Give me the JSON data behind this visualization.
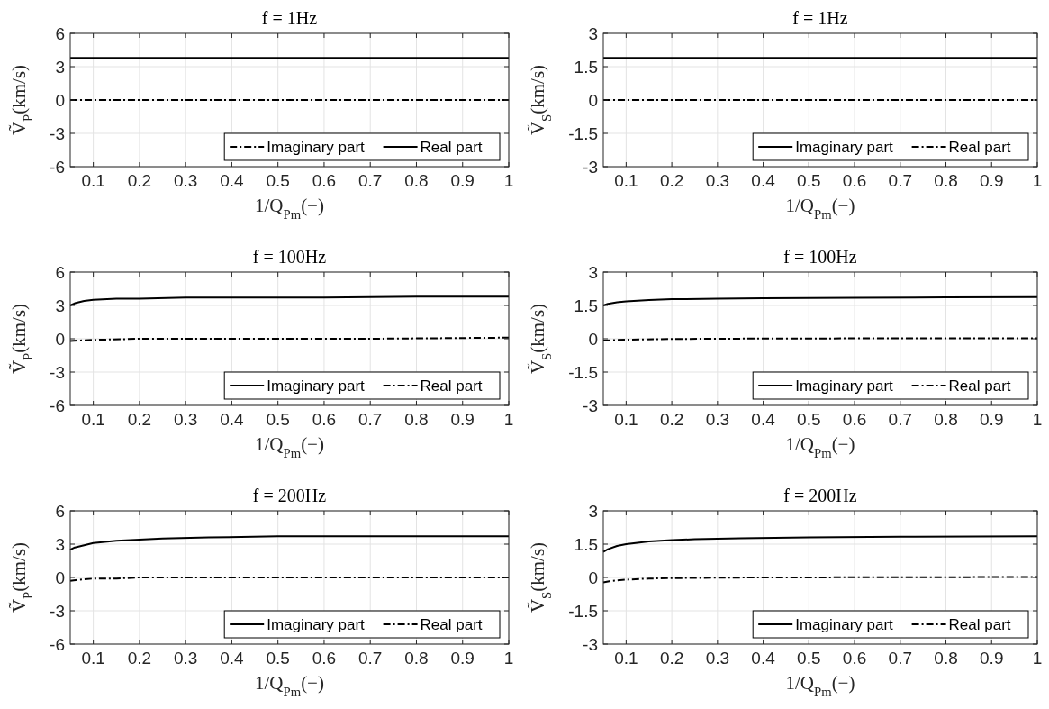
{
  "chart_data": [
    {
      "type": "line",
      "title": "f = 1Hz",
      "xlabel": "1/Q$_{Pm}$(−)",
      "ylabel": "Ṽ$_{P}$(km/s)",
      "xlim": [
        0.05,
        1
      ],
      "xticks": [
        0.1,
        0.2,
        0.3,
        0.4,
        0.5,
        0.6,
        0.7,
        0.8,
        0.9,
        1
      ],
      "ylim": [
        -6,
        6
      ],
      "yticks": [
        -6,
        -3,
        0,
        3,
        6
      ],
      "grid": true,
      "legend": "bottom right",
      "series": [
        {
          "name": "Imaginary part",
          "color": "#000000",
          "line_style": "dashdot",
          "x": [
            0.05,
            1
          ],
          "values": [
            0,
            0
          ]
        },
        {
          "name": "Real part",
          "color": "#000000",
          "line_style": "solid",
          "x": [
            0.05,
            1
          ],
          "values": [
            3.8,
            3.8
          ]
        }
      ]
    },
    {
      "type": "line",
      "title": "f = 1Hz",
      "xlabel": "1/Q$_{Pm}$(−)",
      "ylabel": "Ṽ$_{S}$(km/s)",
      "xlim": [
        0.05,
        1
      ],
      "xticks": [
        0.1,
        0.2,
        0.3,
        0.4,
        0.5,
        0.6,
        0.7,
        0.8,
        0.9,
        1
      ],
      "ylim": [
        -3,
        3
      ],
      "yticks": [
        -3,
        -1.5,
        0,
        1.5,
        3
      ],
      "grid": true,
      "legend": "bottom right",
      "series": [
        {
          "name": "Imaginary part",
          "color": "#000000",
          "line_style": "solid",
          "x": [
            0.05,
            1
          ],
          "values": [
            1.9,
            1.9
          ]
        },
        {
          "name": "Real part",
          "color": "#000000",
          "line_style": "dashdot",
          "x": [
            0.05,
            1
          ],
          "values": [
            0,
            0
          ]
        }
      ]
    },
    {
      "type": "line",
      "title": "f = 100Hz",
      "xlabel": "1/Q$_{Pm}$(−)",
      "ylabel": "Ṽ$_{P}$(km/s)",
      "xlim": [
        0.05,
        1
      ],
      "xticks": [
        0.1,
        0.2,
        0.3,
        0.4,
        0.5,
        0.6,
        0.7,
        0.8,
        0.9,
        1
      ],
      "ylim": [
        -6,
        6
      ],
      "yticks": [
        -6,
        -3,
        0,
        3,
        6
      ],
      "grid": true,
      "legend": "bottom right",
      "series": [
        {
          "name": "Imaginary part",
          "color": "#000000",
          "line_style": "solid",
          "x": [
            0.05,
            0.06,
            0.08,
            0.1,
            0.15,
            0.2,
            0.3,
            0.4,
            0.6,
            0.8,
            1
          ],
          "values": [
            3.0,
            3.2,
            3.4,
            3.5,
            3.6,
            3.6,
            3.7,
            3.7,
            3.7,
            3.8,
            3.8
          ]
        },
        {
          "name": "Real part",
          "color": "#000000",
          "line_style": "dashdot",
          "x": [
            0.05,
            0.1,
            0.2,
            0.4,
            0.7,
            1
          ],
          "values": [
            -0.2,
            -0.1,
            0,
            0,
            0,
            0.1
          ]
        }
      ]
    },
    {
      "type": "line",
      "title": "f = 100Hz",
      "xlabel": "1/Q$_{Pm}$(−)",
      "ylabel": "Ṽ$_{S}$(km/s)",
      "xlim": [
        0.05,
        1
      ],
      "xticks": [
        0.1,
        0.2,
        0.3,
        0.4,
        0.5,
        0.6,
        0.7,
        0.8,
        0.9,
        1
      ],
      "ylim": [
        -3,
        3
      ],
      "yticks": [
        -3,
        -1.5,
        0,
        1.5,
        3
      ],
      "grid": true,
      "legend": "bottom right",
      "series": [
        {
          "name": "Imaginary part",
          "color": "#000000",
          "line_style": "solid",
          "x": [
            0.05,
            0.06,
            0.08,
            0.1,
            0.15,
            0.2,
            0.3,
            0.4,
            0.6,
            0.8,
            1
          ],
          "values": [
            1.5,
            1.57,
            1.64,
            1.68,
            1.74,
            1.78,
            1.8,
            1.82,
            1.84,
            1.86,
            1.87
          ]
        },
        {
          "name": "Real part",
          "color": "#000000",
          "line_style": "dashdot",
          "x": [
            0.05,
            0.1,
            0.2,
            0.4,
            0.7,
            1
          ],
          "values": [
            -0.08,
            -0.04,
            -0.01,
            0.01,
            0.02,
            0.02
          ]
        }
      ]
    },
    {
      "type": "line",
      "title": "f = 200Hz",
      "xlabel": "1/Q$_{Pm}$(−)",
      "ylabel": "Ṽ$_{P}$(km/s)",
      "xlim": [
        0.05,
        1
      ],
      "xticks": [
        0.1,
        0.2,
        0.3,
        0.4,
        0.5,
        0.6,
        0.7,
        0.8,
        0.9,
        1
      ],
      "ylim": [
        -6,
        6
      ],
      "yticks": [
        -6,
        -3,
        0,
        3,
        6
      ],
      "grid": true,
      "legend": "bottom right",
      "series": [
        {
          "name": "Imaginary part",
          "color": "#000000",
          "line_style": "solid",
          "x": [
            0.05,
            0.06,
            0.08,
            0.1,
            0.15,
            0.2,
            0.25,
            0.35,
            0.5,
            0.7,
            1
          ],
          "values": [
            2.5,
            2.7,
            2.9,
            3.1,
            3.3,
            3.4,
            3.5,
            3.6,
            3.7,
            3.7,
            3.7
          ]
        },
        {
          "name": "Real part",
          "color": "#000000",
          "line_style": "dashdot",
          "x": [
            0.05,
            0.07,
            0.1,
            0.15,
            0.2,
            0.3,
            0.5,
            0.7,
            1
          ],
          "values": [
            -0.3,
            -0.2,
            -0.1,
            -0.1,
            0,
            0,
            0,
            0,
            0
          ]
        }
      ]
    },
    {
      "type": "line",
      "title": "f = 200Hz",
      "xlabel": "1/Q$_{Pm}$(−)",
      "ylabel": "Ṽ$_{S}$(km/s)",
      "xlim": [
        0.05,
        1
      ],
      "xticks": [
        0.1,
        0.2,
        0.3,
        0.4,
        0.5,
        0.6,
        0.7,
        0.8,
        0.9,
        1
      ],
      "ylim": [
        -3,
        3
      ],
      "yticks": [
        -3,
        -1.5,
        0,
        1.5,
        3
      ],
      "grid": true,
      "legend": "bottom right",
      "series": [
        {
          "name": "Imaginary part",
          "color": "#000000",
          "line_style": "solid",
          "x": [
            0.05,
            0.06,
            0.08,
            0.1,
            0.15,
            0.2,
            0.25,
            0.35,
            0.5,
            0.7,
            1
          ],
          "values": [
            1.15,
            1.27,
            1.42,
            1.5,
            1.62,
            1.68,
            1.72,
            1.76,
            1.8,
            1.83,
            1.85
          ]
        },
        {
          "name": "Real part",
          "color": "#000000",
          "line_style": "dashdot",
          "x": [
            0.05,
            0.07,
            0.1,
            0.15,
            0.2,
            0.3,
            0.4,
            0.7,
            1
          ],
          "values": [
            -0.22,
            -0.15,
            -0.1,
            -0.05,
            -0.03,
            -0.01,
            0,
            0.01,
            0.02
          ]
        }
      ]
    }
  ]
}
